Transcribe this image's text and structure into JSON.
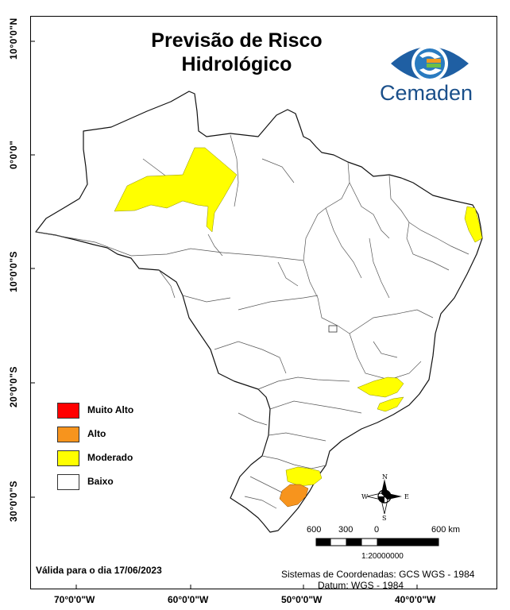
{
  "title_line1": "Previsão de Risco",
  "title_line2": "Hidrológico",
  "logo_text": "Cemaden",
  "legend": [
    {
      "label": "Muito Alto",
      "color": "#ff0000"
    },
    {
      "label": "Alto",
      "color": "#f7941d"
    },
    {
      "label": "Moderado",
      "color": "#ffff00"
    },
    {
      "label": "Baixo",
      "color": "#ffffff"
    }
  ],
  "latitude_labels": [
    "10°0'0\"N",
    "0°0'0\"",
    "10°0'0\"S",
    "20°0'0\"S",
    "30°0'0\"S"
  ],
  "longitude_labels": [
    "70°0'0\"W",
    "60°0'0\"W",
    "50°0'0\"W",
    "40°0'0\"W"
  ],
  "validity": "Válida para o dia 17/06/2023",
  "coordinate_system": "Sistemas de Coordenadas: GCS WGS - 1984",
  "datum": "Datum: WGS - 1984",
  "scale": {
    "labels": [
      "600",
      "300",
      "0",
      "600 km"
    ],
    "ratio": "1:20000000"
  },
  "compass": {
    "n": "N",
    "s": "S",
    "e": "E",
    "w": "W"
  }
}
